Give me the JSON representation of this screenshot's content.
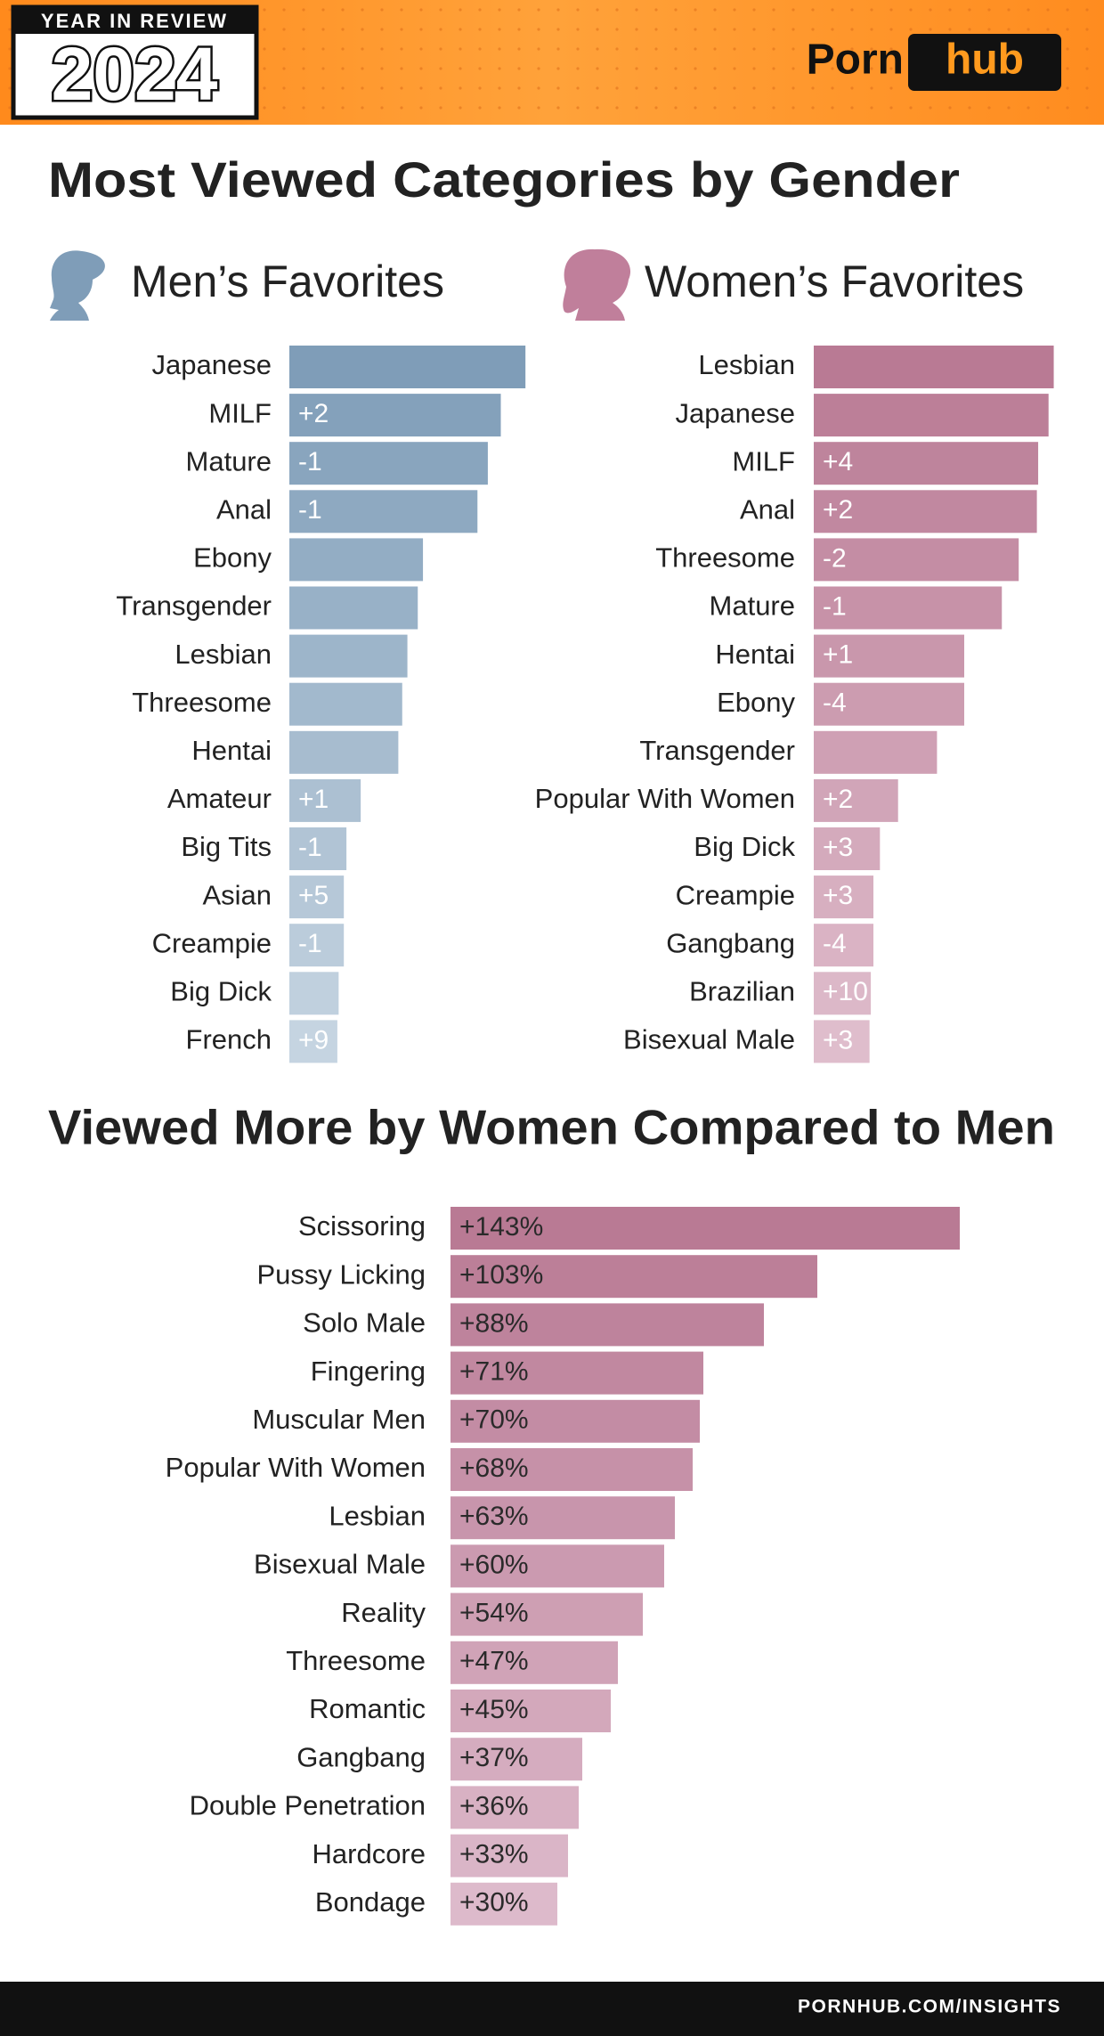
{
  "header": {
    "badge": "YEAR IN REVIEW",
    "year": "2024",
    "brand_left": "Porn",
    "brand_right": "hub"
  },
  "section_title": "Most Viewed Categories by Gender",
  "chart_data": [
    {
      "type": "bar",
      "title": "Men’s Favorites",
      "color": "#7f9db8",
      "color_light": "#c5d4e1",
      "categories": [
        "Japanese",
        "MILF",
        "Mature",
        "Anal",
        "Ebony",
        "Transgender",
        "Lesbian",
        "Threesome",
        "Hentai",
        "Amateur",
        "Big Tits",
        "Asian",
        "Creampie",
        "Big Dick",
        "French"
      ],
      "values": [
        182,
        163,
        153,
        145,
        103,
        99,
        91,
        87,
        84,
        55,
        44,
        42,
        42,
        38,
        37
      ],
      "rank_changes": [
        null,
        "+2",
        "-1",
        "-1",
        null,
        null,
        null,
        null,
        null,
        "+1",
        "-1",
        "+5",
        "-1",
        null,
        "+9"
      ]
    },
    {
      "type": "bar",
      "title": "Women’s Favorites",
      "color": "#b97a94",
      "color_light": "#dfbdcc",
      "categories": [
        "Lesbian",
        "Japanese",
        "MILF",
        "Anal",
        "Threesome",
        "Mature",
        "Hentai",
        "Ebony",
        "Transgender",
        "Popular With Women",
        "Big Dick",
        "Creampie",
        "Gangbang",
        "Brazilian",
        "Bisexual Male"
      ],
      "values": [
        185,
        181,
        173,
        172,
        158,
        145,
        116,
        116,
        95,
        65,
        51,
        46,
        46,
        44,
        43
      ],
      "rank_changes": [
        null,
        null,
        "+4",
        "+2",
        "-2",
        "-1",
        "+1",
        "-4",
        null,
        "+2",
        "+3",
        "+3",
        "-4",
        "+10",
        "+3"
      ]
    },
    {
      "type": "bar",
      "title": "Viewed More by Women Compared to Men",
      "color": "#b97a94",
      "color_light": "#ddbacb",
      "categories": [
        "Scissoring",
        "Pussy Licking",
        "Solo Male",
        "Fingering",
        "Muscular Men",
        "Popular With Women",
        "Lesbian",
        "Bisexual Male",
        "Reality",
        "Threesome",
        "Romantic",
        "Gangbang",
        "Double Penetration",
        "Hardcore",
        "Bondage"
      ],
      "values": [
        143,
        103,
        88,
        71,
        70,
        68,
        63,
        60,
        54,
        47,
        45,
        37,
        36,
        33,
        30
      ],
      "value_labels": [
        "+143%",
        "+103%",
        "+88%",
        "+71%",
        "+70%",
        "+68%",
        "+63%",
        "+60%",
        "+54%",
        "+47%",
        "+45%",
        "+37%",
        "+36%",
        "+33%",
        "+30%"
      ]
    }
  ],
  "footer": "PORNHUB.COM/INSIGHTS"
}
